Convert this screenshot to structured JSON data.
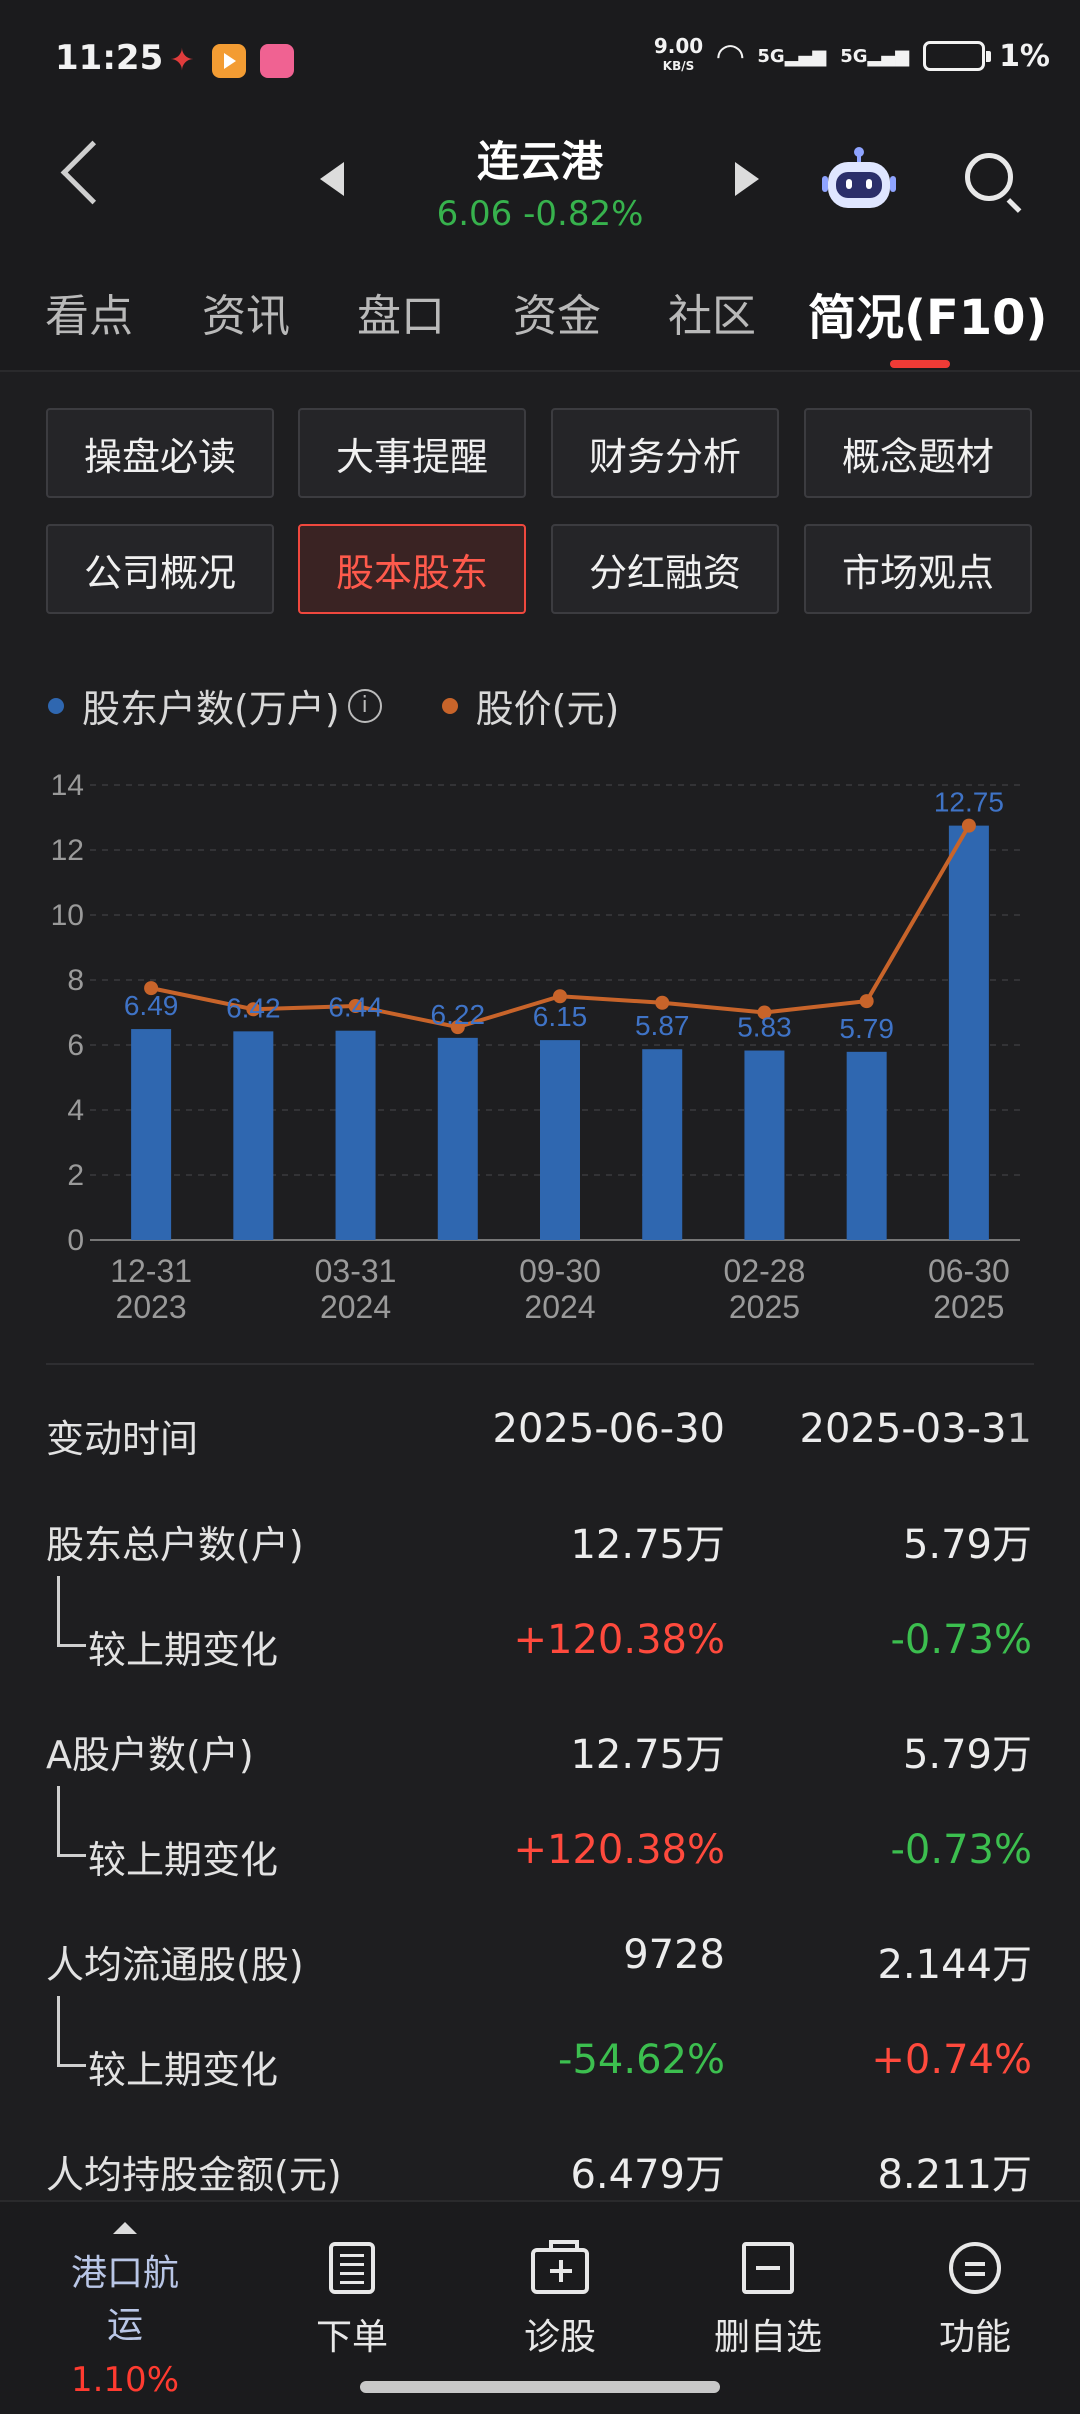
{
  "status": {
    "time": "11:25",
    "net_speed": "9.00",
    "net_unit": "KB/S",
    "sig1": "5G",
    "sig2": "5G",
    "battery": "1%"
  },
  "header": {
    "name": "连云港",
    "price": "6.06",
    "change": "-0.82%"
  },
  "tabs": [
    "看点",
    "资讯",
    "盘口",
    "资金",
    "社区",
    "简况(F10)"
  ],
  "buttons": [
    "操盘必读",
    "大事提醒",
    "财务分析",
    "概念题材",
    "公司概况",
    "股本股东",
    "分红融资",
    "市场观点"
  ],
  "legend": {
    "holders": "股东户数(万户)",
    "price": "股价(元)",
    "info": "i"
  },
  "chart_data": {
    "type": "bar",
    "categories": [
      "12-31 2023",
      "",
      "03-31 2024",
      "",
      "09-30 2024",
      "",
      "02-28 2025",
      "",
      "06-30 2025"
    ],
    "x_tick_labels": [
      [
        "12-31",
        "2023"
      ],
      [
        "03-31",
        "2024"
      ],
      [
        "09-30",
        "2024"
      ],
      [
        "02-28",
        "2025"
      ],
      [
        "06-30",
        "2025"
      ]
    ],
    "series": [
      {
        "name": "股东户数(万户)",
        "type": "bar",
        "values": [
          6.49,
          6.42,
          6.44,
          6.22,
          6.15,
          5.87,
          5.83,
          5.79,
          12.75
        ],
        "color": "#2f67b0"
      },
      {
        "name": "股价(元)",
        "type": "line",
        "values": [
          7.75,
          7.1,
          7.2,
          6.55,
          7.5,
          7.3,
          7.0,
          7.35,
          12.75
        ],
        "color": "#c8642a"
      }
    ],
    "data_labels": [
      "6.49",
      "6.42",
      "6.44",
      "6.22",
      "6.15",
      "5.87",
      "5.83",
      "5.79",
      "12.75"
    ],
    "y_ticks": [
      0,
      2,
      4,
      6,
      8,
      10,
      12,
      14
    ],
    "ylim": [
      0,
      14
    ],
    "grid": true
  },
  "table": {
    "header": {
      "label": "变动时间",
      "c1": "2025-06-30",
      "c2": "2025-03-31"
    },
    "rows": [
      {
        "label": "股东总户数(户)",
        "c1": "12.75万",
        "c2": "5.79万"
      },
      {
        "label": "较上期变化",
        "c1": "+120.38%",
        "c2": "-0.73%"
      },
      {
        "label": "A股户数(户)",
        "c1": "12.75万",
        "c2": "5.79万"
      },
      {
        "label": "较上期变化",
        "c1": "+120.38%",
        "c2": "-0.73%"
      },
      {
        "label": "人均流通股(股)",
        "c1": "9728",
        "c2": "2.144万"
      },
      {
        "label": "较上期变化",
        "c1": "-54.62%",
        "c2": "+0.74%"
      },
      {
        "label": "人均持股金额(元)",
        "c1": "6.479万",
        "c2": "8.211万"
      }
    ]
  },
  "bottom": {
    "sector": "港口航运",
    "sector_change": "1.10%",
    "items": [
      "下单",
      "诊股",
      "删自选",
      "功能"
    ]
  },
  "colors": {
    "up": "#ff4a3d",
    "down": "#3cbf4f",
    "accent": "#ef3b36",
    "bar": "#2f67b0",
    "line": "#c8642a"
  }
}
